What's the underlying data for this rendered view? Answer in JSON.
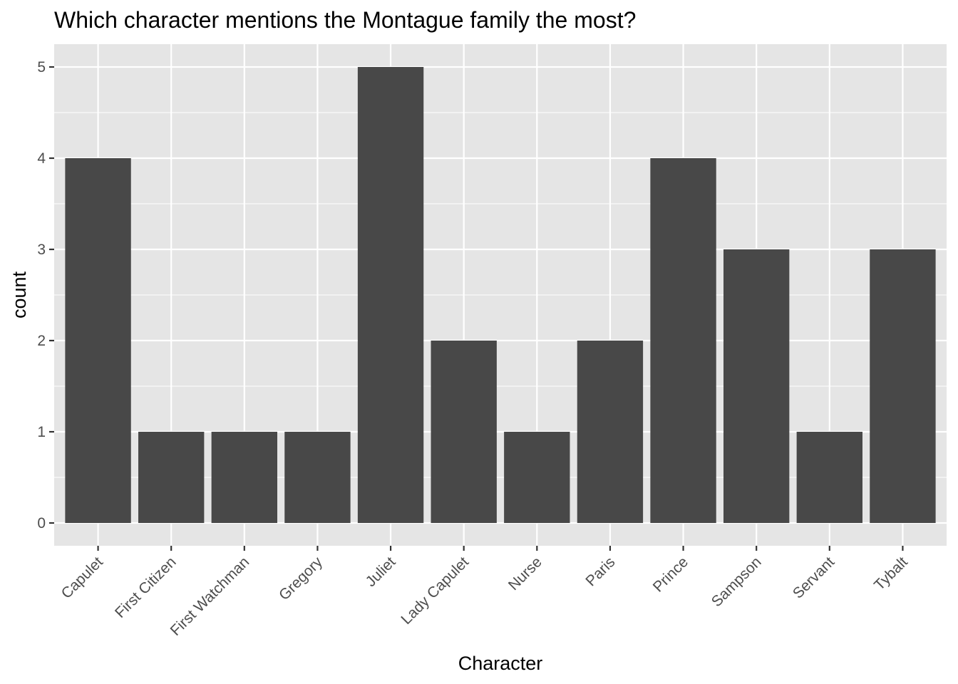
{
  "chart_data": {
    "type": "bar",
    "title": "Which character mentions the Montague family the most?",
    "xlabel": "Character",
    "ylabel": "count",
    "categories": [
      "Capulet",
      "First Citizen",
      "First Watchman",
      "Gregory",
      "Juliet",
      "Lady Capulet",
      "Nurse",
      "Paris",
      "Prince",
      "Sampson",
      "Servant",
      "Tybalt"
    ],
    "values": [
      4,
      1,
      1,
      1,
      5,
      2,
      1,
      2,
      4,
      3,
      1,
      3
    ],
    "yticks": [
      0,
      1,
      2,
      3,
      4,
      5
    ],
    "ylim": [
      -0.25,
      5.25
    ],
    "grid": true,
    "colors": {
      "panel": "#e5e5e5",
      "grid": "#ffffff",
      "bar": "#484848",
      "tick": "#333333",
      "tick_text": "#4d4d4d"
    }
  }
}
